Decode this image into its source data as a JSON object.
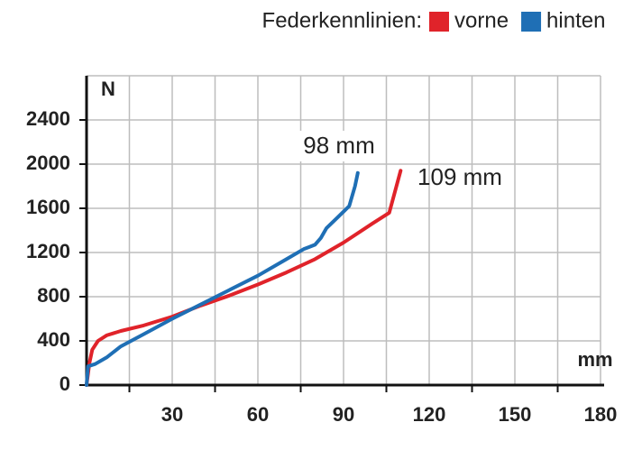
{
  "chart_data": {
    "type": "line",
    "legend_title": "Federkennlinien:",
    "x_label": "mm",
    "y_label": "N",
    "annotations": [
      "98 mm",
      "109 mm"
    ],
    "series": [
      {
        "name": "vorne",
        "color": "#e0232a",
        "x": [
          0,
          1,
          2,
          4,
          7,
          12,
          20,
          30,
          40,
          50,
          60,
          70,
          80,
          90,
          100,
          106,
          108,
          110
        ],
        "values": [
          0,
          200,
          320,
          400,
          450,
          490,
          540,
          620,
          720,
          810,
          910,
          1020,
          1140,
          1290,
          1460,
          1560,
          1750,
          1940
        ]
      },
      {
        "name": "hinten",
        "color": "#1f6fb5",
        "x": [
          0,
          0.5,
          3,
          7,
          12,
          20,
          30,
          40,
          50,
          60,
          70,
          76,
          78,
          80,
          82,
          84,
          88,
          92,
          94,
          95
        ],
        "values": [
          0,
          170,
          190,
          250,
          350,
          460,
          600,
          730,
          860,
          990,
          1140,
          1230,
          1250,
          1270,
          1330,
          1420,
          1520,
          1620,
          1800,
          1920
        ]
      }
    ],
    "xlim": [
      0,
      180
    ],
    "xticks": [
      30,
      60,
      90,
      120,
      150,
      180
    ],
    "xminor_ticks": [
      15,
      45,
      75,
      105,
      135,
      165
    ],
    "ylim": [
      0,
      2800
    ],
    "yticks": [
      0,
      400,
      800,
      1200,
      1600,
      2000,
      2400
    ],
    "grid": true
  }
}
